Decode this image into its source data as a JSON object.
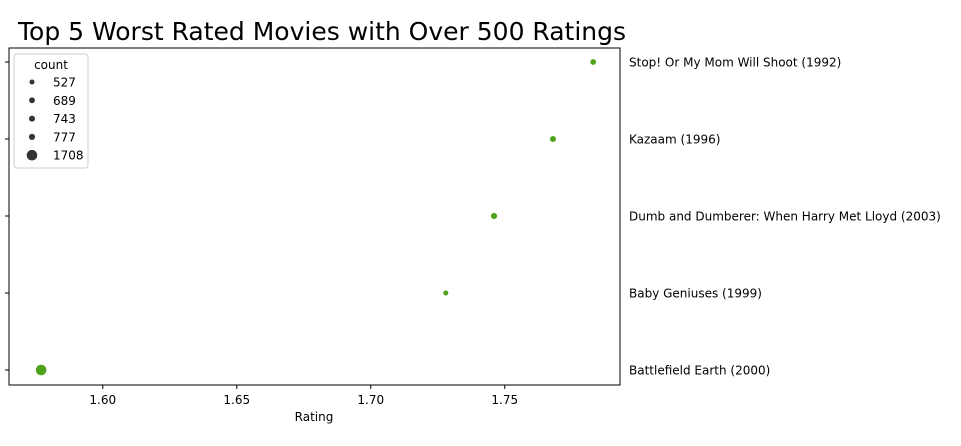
{
  "chart_data": {
    "type": "scatter",
    "title": "Top 5 Worst Rated Movies with Over 500 Ratings",
    "xlabel": "Rating",
    "ylabel": "",
    "xlim": [
      1.565,
      1.793
    ],
    "xticks": [
      "1.60",
      "1.65",
      "1.70",
      "1.75"
    ],
    "xtick_values": [
      1.6,
      1.65,
      1.7,
      1.75
    ],
    "grid": false,
    "legend_position": "top-left",
    "legend_title": "count",
    "legend_entries": [
      "527",
      "689",
      "743",
      "777",
      "1708"
    ],
    "legend_values": [
      527,
      689,
      743,
      777,
      1708
    ],
    "point_color": "#4ea21c",
    "points": [
      {
        "label": "Stop! Or My Mom Will Shoot (1992)",
        "rating": 1.783,
        "count": 689
      },
      {
        "label": "Kazaam (1996)",
        "rating": 1.768,
        "count": 743
      },
      {
        "label": "Dumb and Dumberer: When Harry Met Lloyd (2003)",
        "rating": 1.746,
        "count": 777
      },
      {
        "label": "Baby Geniuses (1999)",
        "rating": 1.728,
        "count": 527
      },
      {
        "label": "Battlefield Earth (2000)",
        "rating": 1.577,
        "count": 1708
      }
    ]
  }
}
